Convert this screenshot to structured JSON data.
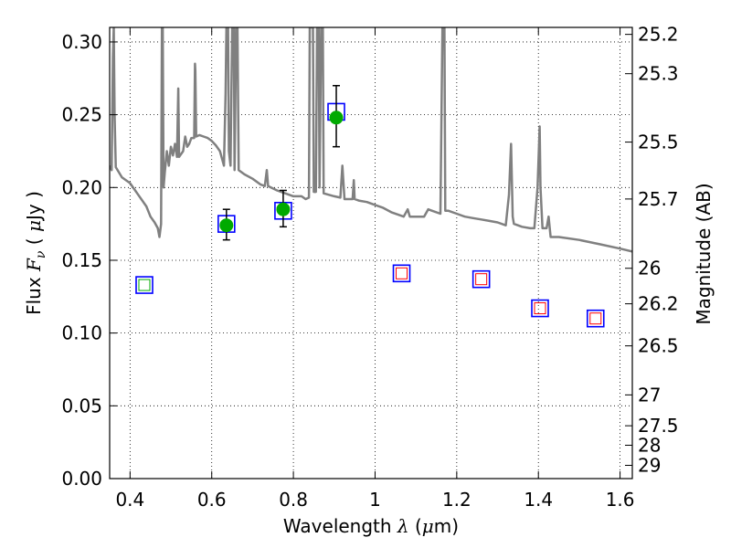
{
  "chart_data": {
    "type": "scatter",
    "xlabel_parts": [
      "Wavelength ",
      "λ",
      " (",
      "μ",
      "m)"
    ],
    "ylabel_parts": [
      "Flux  ",
      "F",
      "ν",
      "  ( ",
      "μ",
      "Jy )"
    ],
    "y2label": "Magnitude (AB)",
    "xlim": [
      0.35,
      1.63
    ],
    "ylim": [
      0.0,
      0.31
    ],
    "grid": true,
    "x_ticks": [
      {
        "value": 0.4,
        "label": "0.4"
      },
      {
        "value": 0.6,
        "label": "0.6"
      },
      {
        "value": 0.8,
        "label": "0.8"
      },
      {
        "value": 1.0,
        "label": "1"
      },
      {
        "value": 1.2,
        "label": "1.2"
      },
      {
        "value": 1.4,
        "label": "1.4"
      },
      {
        "value": 1.6,
        "label": "1.6"
      }
    ],
    "y_ticks": [
      {
        "value": 0.0,
        "label": "0.00"
      },
      {
        "value": 0.05,
        "label": "0.05"
      },
      {
        "value": 0.1,
        "label": "0.10"
      },
      {
        "value": 0.15,
        "label": "0.15"
      },
      {
        "value": 0.2,
        "label": "0.20"
      },
      {
        "value": 0.25,
        "label": "0.25"
      },
      {
        "value": 0.3,
        "label": "0.30"
      }
    ],
    "y2_ticks": [
      {
        "flux": 0.3052,
        "label": "25.2"
      },
      {
        "flux": 0.2782,
        "label": "25.3"
      },
      {
        "flux": 0.2312,
        "label": "25.5"
      },
      {
        "flux": 0.1921,
        "label": "25.7"
      },
      {
        "flux": 0.1445,
        "label": "26"
      },
      {
        "flux": 0.1201,
        "label": "26.2"
      },
      {
        "flux": 0.0912,
        "label": "26.5"
      },
      {
        "flux": 0.0575,
        "label": "27"
      },
      {
        "flux": 0.0363,
        "label": "27.5"
      },
      {
        "flux": 0.0229,
        "label": "28"
      },
      {
        "flux": 0.0091,
        "label": "29"
      }
    ],
    "series": [
      {
        "kind": "model_spectrum",
        "color": "#808080",
        "points": [
          [
            0.35,
            0.215
          ],
          [
            0.355,
            0.212
          ],
          [
            0.358,
            0.29
          ],
          [
            0.36,
            0.31
          ],
          [
            0.362,
            0.25
          ],
          [
            0.365,
            0.214
          ],
          [
            0.38,
            0.207
          ],
          [
            0.4,
            0.203
          ],
          [
            0.42,
            0.195
          ],
          [
            0.44,
            0.187
          ],
          [
            0.45,
            0.18
          ],
          [
            0.46,
            0.176
          ],
          [
            0.468,
            0.172
          ],
          [
            0.472,
            0.166
          ],
          [
            0.476,
            0.175
          ],
          [
            0.478,
            0.31
          ],
          [
            0.48,
            0.31
          ],
          [
            0.482,
            0.2
          ],
          [
            0.485,
            0.21
          ],
          [
            0.49,
            0.225
          ],
          [
            0.495,
            0.215
          ],
          [
            0.5,
            0.228
          ],
          [
            0.505,
            0.222
          ],
          [
            0.51,
            0.23
          ],
          [
            0.515,
            0.221
          ],
          [
            0.518,
            0.268
          ],
          [
            0.52,
            0.221
          ],
          [
            0.53,
            0.225
          ],
          [
            0.535,
            0.235
          ],
          [
            0.54,
            0.228
          ],
          [
            0.545,
            0.23
          ],
          [
            0.55,
            0.234
          ],
          [
            0.557,
            0.234
          ],
          [
            0.559,
            0.285
          ],
          [
            0.56,
            0.28
          ],
          [
            0.562,
            0.235
          ],
          [
            0.57,
            0.236
          ],
          [
            0.58,
            0.235
          ],
          [
            0.59,
            0.234
          ],
          [
            0.6,
            0.232
          ],
          [
            0.61,
            0.229
          ],
          [
            0.62,
            0.225
          ],
          [
            0.625,
            0.22
          ],
          [
            0.63,
            0.215
          ],
          [
            0.634,
            0.265
          ],
          [
            0.636,
            0.31
          ],
          [
            0.64,
            0.31
          ],
          [
            0.642,
            0.225
          ],
          [
            0.646,
            0.215
          ],
          [
            0.65,
            0.31
          ],
          [
            0.654,
            0.31
          ],
          [
            0.656,
            0.212
          ],
          [
            0.66,
            0.31
          ],
          [
            0.663,
            0.31
          ],
          [
            0.666,
            0.212
          ],
          [
            0.68,
            0.209
          ],
          [
            0.7,
            0.206
          ],
          [
            0.72,
            0.202
          ],
          [
            0.73,
            0.201
          ],
          [
            0.735,
            0.212
          ],
          [
            0.738,
            0.201
          ],
          [
            0.76,
            0.198
          ],
          [
            0.78,
            0.196
          ],
          [
            0.8,
            0.194
          ],
          [
            0.82,
            0.194
          ],
          [
            0.83,
            0.192
          ],
          [
            0.838,
            0.193
          ],
          [
            0.84,
            0.31
          ],
          [
            0.848,
            0.31
          ],
          [
            0.85,
            0.197
          ],
          [
            0.855,
            0.197
          ],
          [
            0.858,
            0.31
          ],
          [
            0.862,
            0.31
          ],
          [
            0.864,
            0.2
          ],
          [
            0.868,
            0.31
          ],
          [
            0.872,
            0.31
          ],
          [
            0.874,
            0.196
          ],
          [
            0.9,
            0.194
          ],
          [
            0.915,
            0.193
          ],
          [
            0.92,
            0.215
          ],
          [
            0.925,
            0.192
          ],
          [
            0.945,
            0.192
          ],
          [
            0.948,
            0.205
          ],
          [
            0.95,
            0.192
          ],
          [
            0.96,
            0.191
          ],
          [
            0.98,
            0.19
          ],
          [
            1.0,
            0.188
          ],
          [
            1.02,
            0.186
          ],
          [
            1.04,
            0.183
          ],
          [
            1.06,
            0.181
          ],
          [
            1.07,
            0.18
          ],
          [
            1.08,
            0.185
          ],
          [
            1.085,
            0.18
          ],
          [
            1.1,
            0.18
          ],
          [
            1.12,
            0.18
          ],
          [
            1.13,
            0.185
          ],
          [
            1.14,
            0.184
          ],
          [
            1.16,
            0.182
          ],
          [
            1.165,
            0.31
          ],
          [
            1.17,
            0.31
          ],
          [
            1.172,
            0.184
          ],
          [
            1.18,
            0.184
          ],
          [
            1.2,
            0.182
          ],
          [
            1.22,
            0.18
          ],
          [
            1.24,
            0.179
          ],
          [
            1.26,
            0.178
          ],
          [
            1.28,
            0.177
          ],
          [
            1.3,
            0.176
          ],
          [
            1.32,
            0.174
          ],
          [
            1.328,
            0.195
          ],
          [
            1.333,
            0.23
          ],
          [
            1.337,
            0.18
          ],
          [
            1.34,
            0.175
          ],
          [
            1.36,
            0.173
          ],
          [
            1.38,
            0.172
          ],
          [
            1.39,
            0.172
          ],
          [
            1.398,
            0.2
          ],
          [
            1.403,
            0.242
          ],
          [
            1.405,
            0.2
          ],
          [
            1.41,
            0.172
          ],
          [
            1.42,
            0.172
          ],
          [
            1.425,
            0.18
          ],
          [
            1.43,
            0.166
          ],
          [
            1.45,
            0.166
          ],
          [
            1.5,
            0.164
          ],
          [
            1.55,
            0.161
          ],
          [
            1.6,
            0.158
          ],
          [
            1.63,
            0.156
          ]
        ]
      },
      {
        "kind": "model_photometry",
        "marker": "square",
        "color": "#0000ff",
        "x": [
          0.435,
          0.636,
          0.775,
          0.905,
          1.065,
          1.26,
          1.404,
          1.54
        ],
        "y": [
          0.133,
          0.175,
          0.184,
          0.252,
          0.141,
          0.137,
          0.117,
          0.11
        ]
      },
      {
        "kind": "upper_limits",
        "marker": "square",
        "color": "#ff0000",
        "x": [
          1.065,
          1.26,
          1.404,
          1.54
        ],
        "y": [
          0.141,
          0.137,
          0.117,
          0.11
        ]
      },
      {
        "kind": "nondetection",
        "marker": "square",
        "color": "#00aa00",
        "x": [
          0.435
        ],
        "y": [
          0.133
        ]
      },
      {
        "kind": "detections",
        "marker": "circle",
        "color": "#00aa00",
        "x": [
          0.636,
          0.775,
          0.905
        ],
        "y": [
          0.174,
          0.185,
          0.248
        ],
        "yerr_low": [
          0.164,
          0.173,
          0.228
        ],
        "yerr_high": [
          0.185,
          0.198,
          0.27
        ]
      }
    ]
  }
}
